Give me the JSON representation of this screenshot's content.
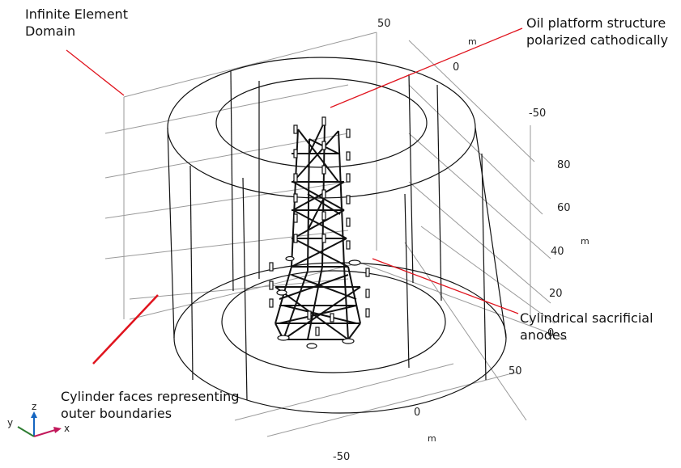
{
  "annotations": {
    "infinite_domain": [
      "Infinite Element",
      "Domain"
    ],
    "oil_platform": [
      "Oil platform structure",
      "polarized cathodically"
    ],
    "anodes": [
      "Cylindrical sacrificial",
      "anodes"
    ],
    "cylinder_faces": [
      "Cylinder faces representing",
      "outer boundaries"
    ]
  },
  "ticks": {
    "y_axis": [
      "50",
      "0",
      "-50"
    ],
    "y_unit": "m",
    "z_axis": [
      "80",
      "60",
      "40",
      "20",
      "0"
    ],
    "z_unit": "m",
    "x_axis": [
      "50",
      "0",
      "-50"
    ],
    "x_unit": "m"
  },
  "triad": {
    "x": "x",
    "y": "y",
    "z": "z"
  },
  "colors": {
    "leader": "#e0141e",
    "triad_x": "#c2185b",
    "triad_y": "#2e7d32",
    "triad_z": "#1565c0"
  }
}
